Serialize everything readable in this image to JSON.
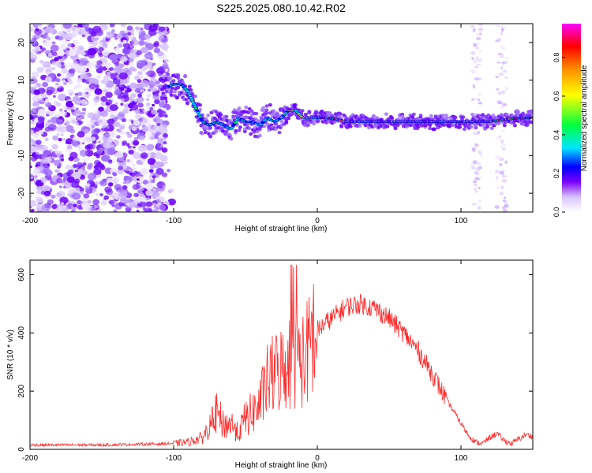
{
  "title": "S225.2025.080.10.42.R02",
  "chart_data": [
    {
      "type": "heatmap",
      "xlabel": "Height of straight line (km)",
      "ylabel": "Frequency (Hz)",
      "xlim": [
        -200,
        150
      ],
      "ylim": [
        -25,
        25
      ],
      "xticks": [
        -200,
        -100,
        0,
        100
      ],
      "yticks": [
        -20,
        -10,
        0,
        10,
        20
      ],
      "colorbar": {
        "label": "Normalized spectral amplitude",
        "ticks": [
          "0.0",
          "0.2",
          "0.4",
          "0.6",
          "0.8"
        ],
        "range": [
          0,
          1
        ],
        "colormap": [
          "#ffffff",
          "#d8c4ff",
          "#7b00ff",
          "#0000ff",
          "#00e5ff",
          "#00ff40",
          "#ffff00",
          "#ff8c00",
          "#ff0000",
          "#ff00ff"
        ]
      },
      "ridge": {
        "x": [
          -105,
          -100,
          -95,
          -90,
          -85,
          -80,
          -75,
          -70,
          -65,
          -60,
          -55,
          -50,
          -45,
          -40,
          -35,
          -30,
          -25,
          -20,
          -15,
          -10,
          -5,
          0,
          10,
          20,
          40,
          60,
          80,
          100,
          120,
          140,
          150
        ],
        "y": [
          8,
          9,
          9,
          7,
          3,
          -1,
          -2,
          -1,
          -2,
          -3,
          0,
          -1,
          -1,
          -2,
          0,
          -1,
          0,
          2,
          2,
          0,
          0,
          0,
          0,
          -1,
          -1,
          -1,
          -1,
          -1,
          -1,
          0,
          0
        ]
      },
      "noise_region_x": [
        -200,
        -105
      ]
    },
    {
      "type": "line",
      "xlabel": "Height of straight line (km)",
      "ylabel": "SNR (10 * v/v)",
      "xlim": [
        -200,
        150
      ],
      "ylim": [
        0,
        650
      ],
      "xticks": [
        -200,
        -100,
        0,
        100
      ],
      "yticks": [
        0,
        200,
        400,
        600
      ],
      "line_color": "#ff2a2a",
      "envelope": {
        "x": [
          -200,
          -150,
          -100,
          -90,
          -80,
          -75,
          -70,
          -65,
          -60,
          -55,
          -50,
          -45,
          -40,
          -35,
          -30,
          -25,
          -20,
          -15,
          -10,
          -5,
          0,
          10,
          20,
          30,
          40,
          50,
          60,
          70,
          80,
          90,
          100,
          105,
          110,
          115,
          120,
          125,
          130,
          135,
          140,
          145,
          150
        ],
        "y": [
          15,
          15,
          20,
          25,
          40,
          80,
          140,
          90,
          100,
          60,
          120,
          140,
          170,
          250,
          280,
          300,
          320,
          350,
          330,
          380,
          410,
          450,
          490,
          500,
          485,
          450,
          400,
          340,
          260,
          170,
          90,
          50,
          25,
          20,
          40,
          55,
          30,
          20,
          35,
          50,
          45
        ]
      }
    }
  ]
}
